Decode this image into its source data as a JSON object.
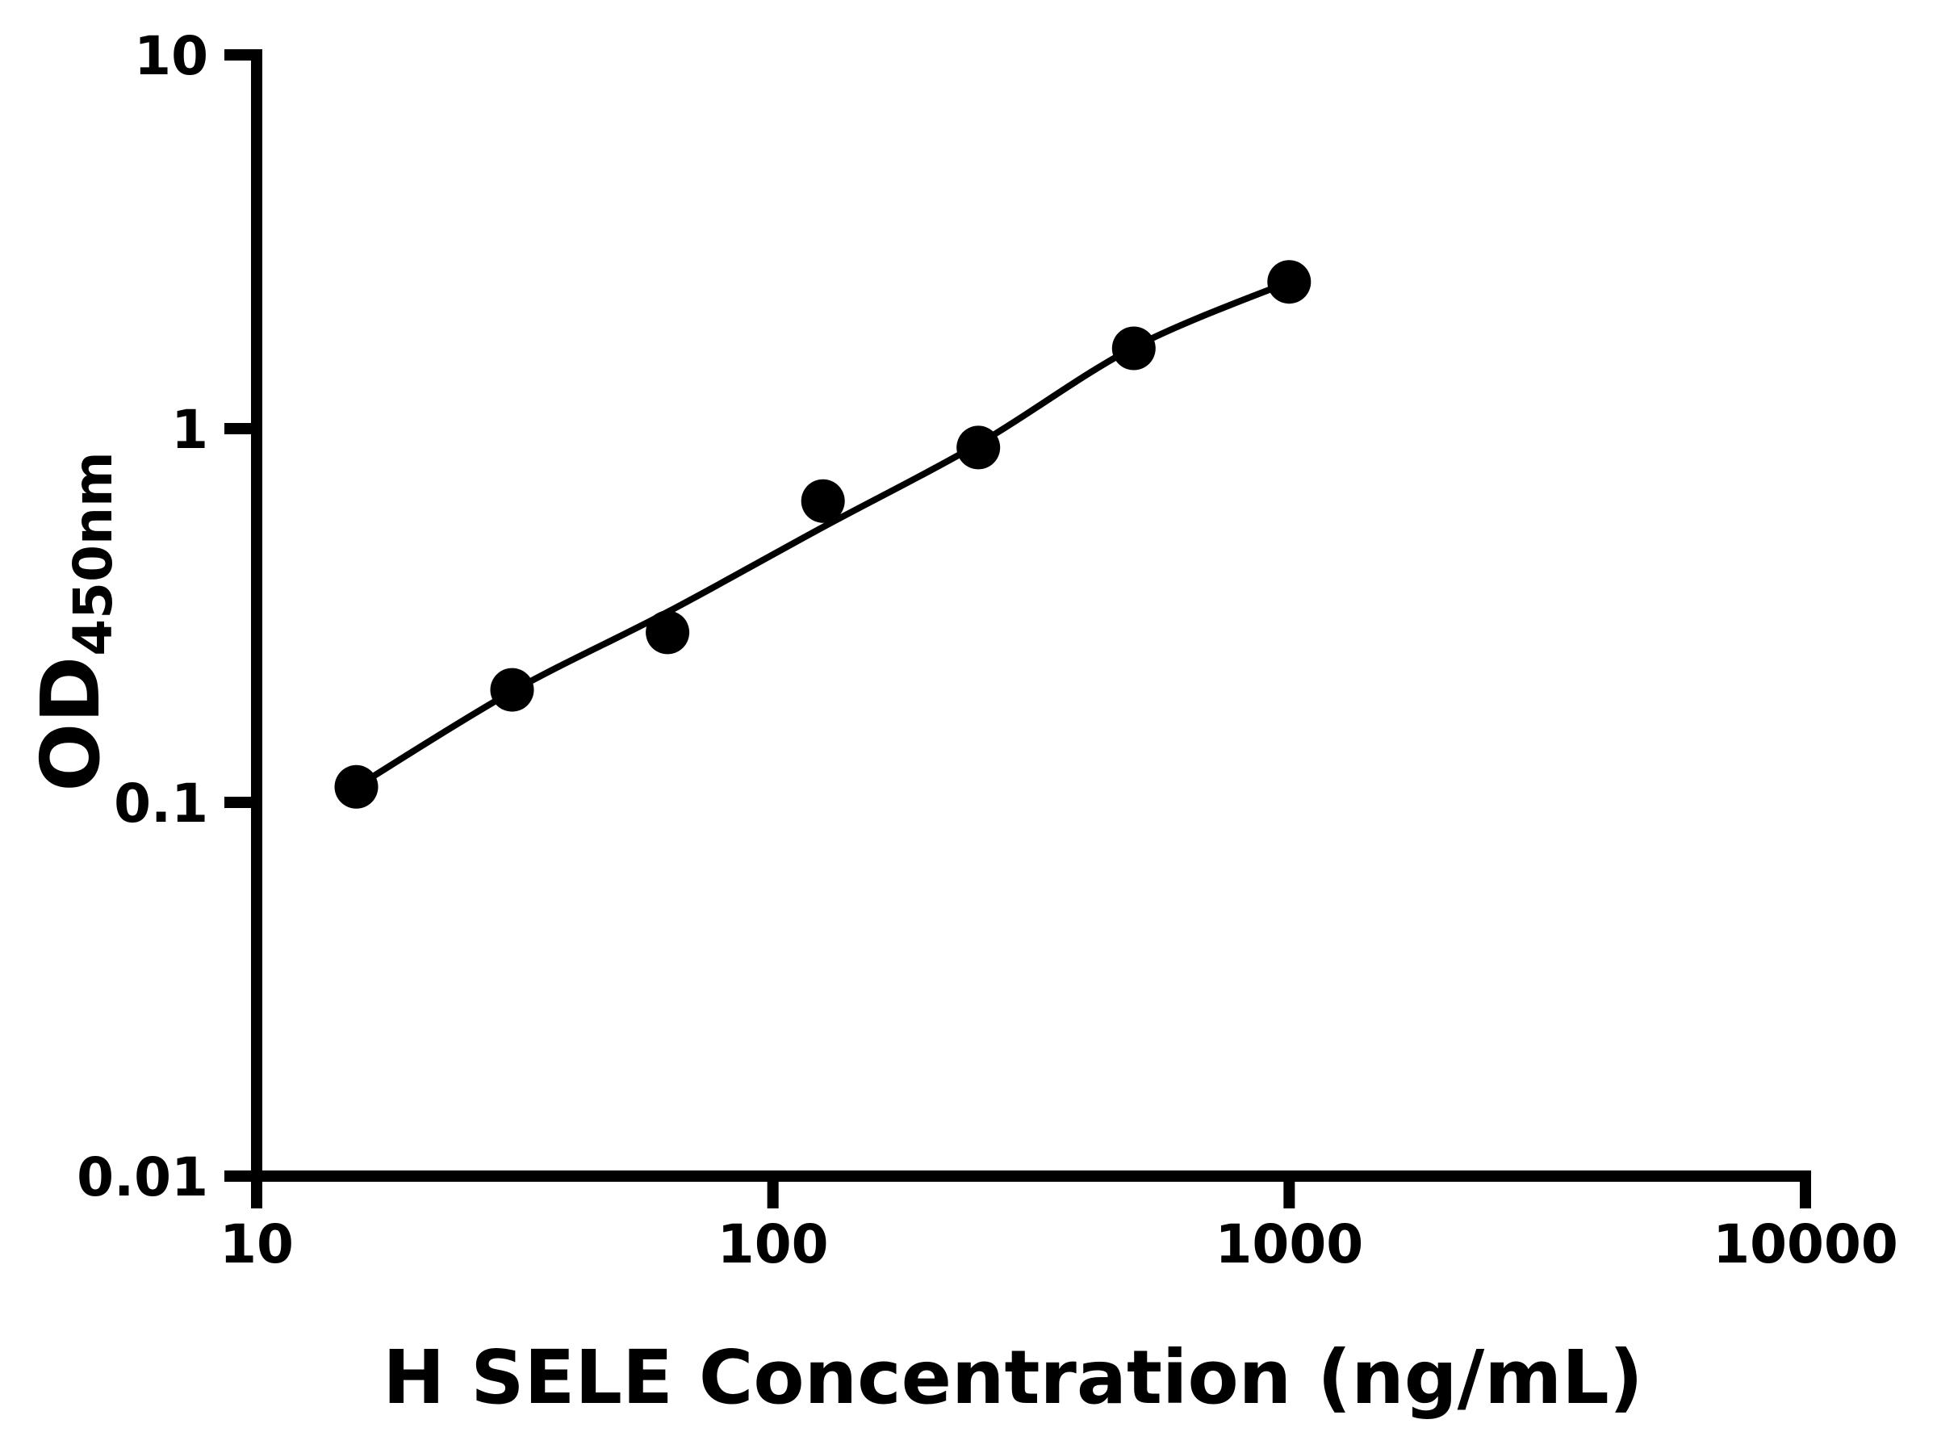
{
  "chart_data": {
    "type": "scatter",
    "xlabel": "H SELE Concentration (ng/mL)",
    "ylabel": {
      "main": "OD",
      "sub": "450nm",
      "full": "OD450nm"
    },
    "x_scale": "log",
    "y_scale": "log",
    "xlim": [
      10,
      10000
    ],
    "ylim": [
      0.01,
      10
    ],
    "grid": false,
    "x_ticks": [
      {
        "v": 10,
        "label": "10"
      },
      {
        "v": 100,
        "label": "100"
      },
      {
        "v": 1000,
        "label": "1000"
      },
      {
        "v": 10000,
        "label": "10000"
      }
    ],
    "y_ticks": [
      {
        "v": 10,
        "label": "10"
      },
      {
        "v": 1,
        "label": "1"
      },
      {
        "v": 0.1,
        "label": "0.1"
      },
      {
        "v": 0.01,
        "label": "0.01"
      }
    ],
    "series": [
      {
        "marker": "circle",
        "color": "#000000",
        "points": [
          {
            "x": 15.6,
            "y": 0.11
          },
          {
            "x": 31.25,
            "y": 0.2
          },
          {
            "x": 62.5,
            "y": 0.285
          },
          {
            "x": 125,
            "y": 0.64
          },
          {
            "x": 250,
            "y": 0.89
          },
          {
            "x": 500,
            "y": 1.64
          },
          {
            "x": 1000,
            "y": 2.47
          }
        ]
      }
    ],
    "fit_curve": {
      "color": "#000000",
      "anchors": [
        {
          "x": 15.6,
          "y": 0.11
        },
        {
          "x": 31.25,
          "y": 0.198
        },
        {
          "x": 62.5,
          "y": 0.323
        },
        {
          "x": 125,
          "y": 0.545
        },
        {
          "x": 250,
          "y": 0.91
        },
        {
          "x": 500,
          "y": 1.65
        },
        {
          "x": 1000,
          "y": 2.47
        }
      ]
    },
    "colors": {
      "foreground": "#000000",
      "background": "#ffffff"
    }
  }
}
